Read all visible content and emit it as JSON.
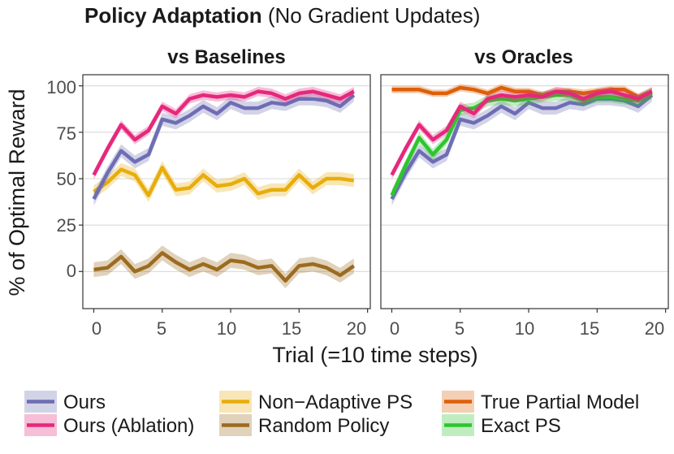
{
  "chart_data": {
    "type": "line",
    "title_bold": "Policy Adaptation",
    "title_rest": " (No Gradient Updates)",
    "xlabel": "Trial (=10 time steps)",
    "ylabel": "% of Optimal Reward",
    "xlim": [
      -0.8,
      20.2
    ],
    "ylim": [
      -20,
      106
    ],
    "x_ticks": [
      0,
      5,
      10,
      15,
      20
    ],
    "x_tick_labels": [
      "0",
      "5",
      "10",
      "15",
      "20"
    ],
    "y_ticks": [
      0,
      25,
      50,
      75,
      100
    ],
    "y_tick_labels": [
      "0",
      "25",
      "50",
      "75",
      "100"
    ],
    "grid": true,
    "legend_position": "bottom",
    "legend": [
      {
        "key": "ours",
        "label": "Ours",
        "color": "#6e6db4"
      },
      {
        "key": "ours_ablation",
        "label": "Ours (Ablation)",
        "color": "#e5287c"
      },
      {
        "key": "non_adaptive",
        "label": "Non−Adaptive PS",
        "color": "#e8ad0c"
      },
      {
        "key": "random",
        "label": "Random Policy",
        "color": "#9c6b1e"
      },
      {
        "key": "true_partial",
        "label": "True Partial Model",
        "color": "#de5f08"
      },
      {
        "key": "exact_ps",
        "label": "Exact PS",
        "color": "#2ec52e"
      }
    ],
    "x": [
      0,
      1,
      2,
      3,
      4,
      5,
      6,
      7,
      8,
      9,
      10,
      11,
      12,
      13,
      14,
      15,
      16,
      17,
      18,
      19
    ],
    "panels": [
      {
        "title": "vs Baselines",
        "series": [
          {
            "key": "random",
            "band": 4,
            "values": [
              1,
              2,
              8,
              0,
              3,
              10,
              5,
              1,
              4,
              1,
              6,
              5,
              2,
              3,
              -5,
              3,
              4,
              2,
              -2,
              3
            ]
          },
          {
            "key": "non_adaptive",
            "band": 3.5,
            "values": [
              43,
              48,
              55,
              52,
              41,
              56,
              44,
              45,
              52,
              46,
              47,
              50,
              42,
              44,
              44,
              52,
              45,
              50,
              50,
              49
            ]
          },
          {
            "key": "ours",
            "band": 3.5,
            "values": [
              39,
              53,
              65,
              59,
              63,
              82,
              80,
              84,
              89,
              85,
              91,
              88,
              88,
              91,
              90,
              93,
              93,
              92,
              89,
              95
            ]
          },
          {
            "key": "ours_ablation",
            "band": 2.5,
            "values": [
              52,
              66,
              79,
              71,
              76,
              89,
              85,
              93,
              95,
              94,
              95,
              94,
              97,
              96,
              93,
              96,
              97,
              95,
              93,
              97
            ]
          }
        ]
      },
      {
        "title": "vs Oracles",
        "series": [
          {
            "key": "true_partial",
            "band": 2,
            "values": [
              98,
              98,
              98,
              96,
              96,
              99,
              98,
              96,
              99,
              97,
              97,
              95,
              97,
              97,
              96,
              97,
              98,
              98,
              94,
              97
            ]
          },
          {
            "key": "ours",
            "band": 3.5,
            "values": [
              39,
              53,
              65,
              59,
              63,
              82,
              80,
              84,
              89,
              85,
              91,
              88,
              88,
              91,
              90,
              93,
              93,
              92,
              89,
              95
            ]
          },
          {
            "key": "exact_ps",
            "band": 3,
            "values": [
              41,
              57,
              72,
              63,
              71,
              87,
              88,
              92,
              93,
              92,
              93,
              94,
              95,
              95,
              92,
              94,
              94,
              93,
              92,
              96
            ]
          },
          {
            "key": "ours_ablation",
            "band": 2.5,
            "values": [
              52,
              66,
              79,
              71,
              76,
              89,
              85,
              93,
              95,
              94,
              95,
              94,
              97,
              96,
              93,
              96,
              97,
              95,
              93,
              97
            ]
          }
        ]
      }
    ]
  }
}
